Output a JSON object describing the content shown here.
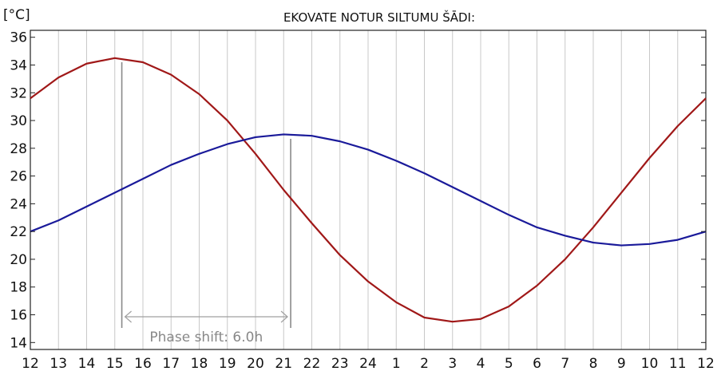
{
  "chart_data": {
    "type": "line",
    "title": "EKOVATE NOTUR SILTUMU ŠĀDI:",
    "ylabel": "[°C]",
    "xlabel": "",
    "x": [
      "12",
      "13",
      "14",
      "15",
      "16",
      "17",
      "18",
      "19",
      "20",
      "21",
      "22",
      "23",
      "24",
      "1",
      "2",
      "3",
      "4",
      "5",
      "6",
      "7",
      "8",
      "9",
      "10",
      "11",
      "12"
    ],
    "ylim": [
      13.5,
      36.5
    ],
    "yticks": [
      14,
      16,
      18,
      20,
      22,
      24,
      26,
      28,
      30,
      32,
      34,
      36
    ],
    "grid": "vertical",
    "series": [
      {
        "color": "#a01818",
        "values": [
          31.6,
          33.1,
          34.1,
          34.5,
          34.2,
          33.3,
          31.9,
          30.0,
          27.6,
          25.0,
          22.6,
          20.3,
          18.4,
          16.9,
          15.8,
          15.5,
          15.7,
          16.6,
          18.1,
          20.0,
          22.3,
          24.8,
          27.3,
          29.6,
          31.6
        ]
      },
      {
        "color": "#1a1a9a",
        "values": [
          22.0,
          22.8,
          23.8,
          24.8,
          25.8,
          26.8,
          27.6,
          28.3,
          28.8,
          29.0,
          28.9,
          28.5,
          27.9,
          27.1,
          26.2,
          25.2,
          24.2,
          23.2,
          22.3,
          21.7,
          21.2,
          21.0,
          21.1,
          21.4,
          22.0
        ]
      }
    ],
    "annotations": {
      "phase_shift_label": "Phase shift: 6.0h",
      "phase_start_x": 3.25,
      "phase_end_x": 9.25
    }
  }
}
